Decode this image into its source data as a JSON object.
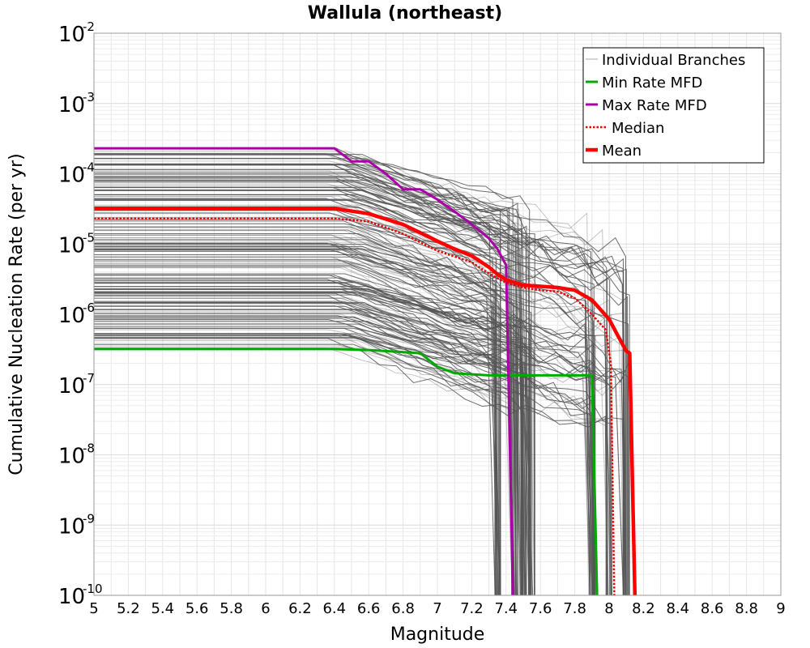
{
  "chart_data": {
    "type": "line",
    "title": "Wallula (northeast)",
    "xlabel": "Magnitude",
    "ylabel": "Cumulative Nucleation Rate (per yr)",
    "xlim": [
      5,
      9
    ],
    "ylim": [
      1e-10,
      0.01
    ],
    "yscale": "log",
    "grid": true,
    "legend_position": "top-right",
    "xticks": [
      "5",
      "5.2",
      "5.4",
      "5.6",
      "5.8",
      "6",
      "6.2",
      "6.4",
      "6.6",
      "6.8",
      "7",
      "7.2",
      "7.4",
      "7.6",
      "7.8",
      "8",
      "8.2",
      "8.4",
      "8.6",
      "8.8",
      "9"
    ],
    "yticks": [
      {
        "base": "10",
        "exp": "-2",
        "value": 0.01
      },
      {
        "base": "10",
        "exp": "-3",
        "value": 0.001
      },
      {
        "base": "10",
        "exp": "-4",
        "value": 0.0001
      },
      {
        "base": "10",
        "exp": "-5",
        "value": 1e-05
      },
      {
        "base": "10",
        "exp": "-6",
        "value": 1e-06
      },
      {
        "base": "10",
        "exp": "-7",
        "value": 1e-07
      },
      {
        "base": "10",
        "exp": "-8",
        "value": 1e-08
      },
      {
        "base": "10",
        "exp": "-9",
        "value": 1e-09
      },
      {
        "base": "10",
        "exp": "-10",
        "value": 1e-10
      }
    ],
    "legend": [
      "Individual Branches",
      "Min Rate MFD",
      "Max Rate MFD",
      "Median",
      "Mean"
    ],
    "series": [
      {
        "name": "Min Rate MFD",
        "color": "#00aa00",
        "style": "solid",
        "x": [
          5.0,
          6.4,
          6.6,
          6.9,
          7.0,
          7.1,
          7.3,
          7.5,
          7.7,
          7.9,
          7.93
        ],
        "y": [
          3.2e-07,
          3.2e-07,
          3.1e-07,
          2.8e-07,
          1.8e-07,
          1.45e-07,
          1.35e-07,
          1.35e-07,
          1.35e-07,
          1.35e-07,
          1e-10
        ]
      },
      {
        "name": "Max Rate MFD",
        "color": "#aa00aa",
        "style": "solid",
        "x": [
          5.0,
          6.4,
          6.5,
          6.6,
          6.7,
          6.8,
          6.9,
          7.0,
          7.1,
          7.2,
          7.3,
          7.35,
          7.4,
          7.44
        ],
        "y": [
          0.00023,
          0.00023,
          0.00015,
          0.00015,
          0.0001,
          6e-05,
          6e-05,
          4.3e-05,
          2.9e-05,
          1.9e-05,
          1.2e-05,
          8.5e-06,
          5e-06,
          1e-10
        ]
      },
      {
        "name": "Median",
        "color": "#ee0000",
        "style": "dotted",
        "x": [
          5.0,
          6.4,
          6.6,
          6.8,
          7.0,
          7.2,
          7.3,
          7.4,
          7.5,
          7.6,
          7.7,
          7.8,
          7.9,
          7.98,
          8.01,
          8.03
        ],
        "y": [
          2.3e-05,
          2.3e-05,
          2.1e-05,
          1.4e-05,
          8e-06,
          5.5e-06,
          3.8e-06,
          2.8e-06,
          2.4e-06,
          2.2e-06,
          2.1e-06,
          1.7e-06,
          1e-06,
          6e-07,
          2e-07,
          1e-10
        ]
      },
      {
        "name": "Mean",
        "color": "#ff0000",
        "style": "solid",
        "x": [
          5.0,
          6.4,
          6.6,
          6.8,
          6.9,
          7.0,
          7.1,
          7.2,
          7.3,
          7.35,
          7.4,
          7.5,
          7.6,
          7.7,
          7.8,
          7.9,
          8.0,
          8.05,
          8.1,
          8.12,
          8.15
        ],
        "y": [
          3.2e-05,
          3.2e-05,
          2.7e-05,
          1.9e-05,
          1.45e-05,
          1.1e-05,
          8.5e-06,
          6.8e-06,
          4.7e-06,
          3.7e-06,
          3.1e-06,
          2.6e-06,
          2.5e-06,
          2.4e-06,
          2.2e-06,
          1.6e-06,
          8.5e-07,
          5e-07,
          3e-07,
          2.8e-07,
          1e-10
        ]
      }
    ],
    "branches_summary": {
      "name": "Individual Branches",
      "color": "#555555",
      "count": "many",
      "plateau_range": [
        3.2e-07,
        0.00023
      ],
      "cutoff_magnitudes": [
        7.35,
        7.45,
        7.5,
        7.55,
        7.9,
        8.0,
        8.1
      ]
    }
  }
}
